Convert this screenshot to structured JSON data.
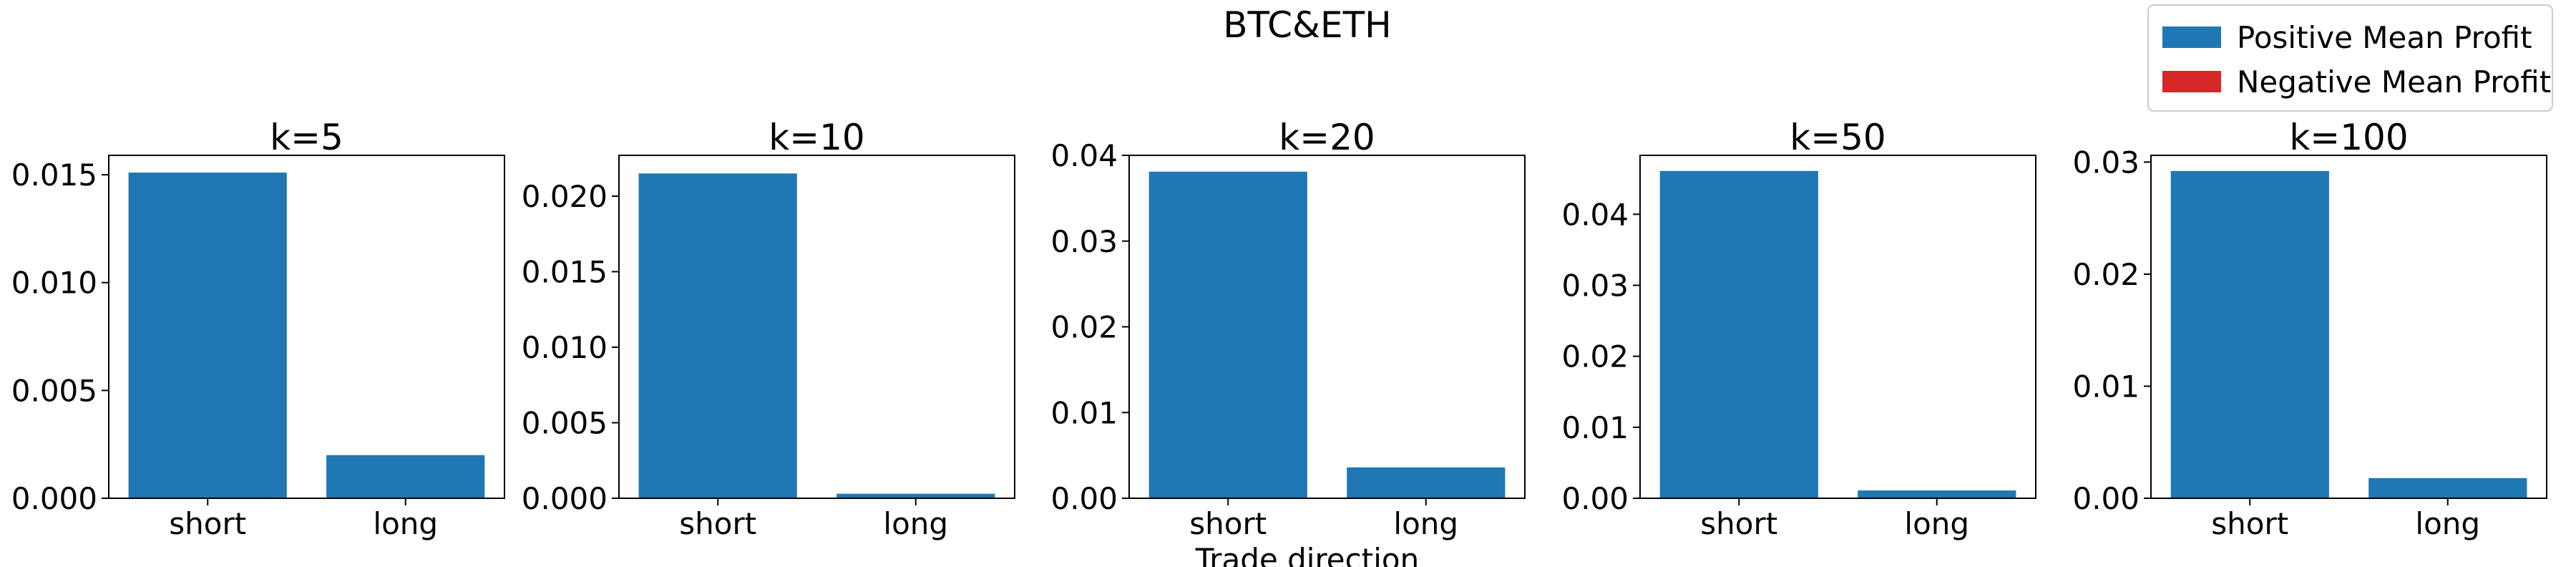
{
  "suptitle": "BTC&ETH",
  "xlabel": "Trade direction",
  "legend": {
    "placement": "top-right",
    "entries": [
      {
        "label": "Positive Mean Profit",
        "color": "#1f77b4"
      },
      {
        "label": "Negative Mean Profit",
        "color": "#d62728"
      }
    ]
  },
  "chart_data": [
    {
      "type": "bar",
      "title": "k=5",
      "categories": [
        "short",
        "long"
      ],
      "values": [
        0.0151,
        0.002
      ],
      "ylim": [
        0,
        0.0159
      ],
      "yticks": [
        0,
        0.005,
        0.01,
        0.015
      ],
      "ytick_labels": [
        "0.000",
        "0.005",
        "0.010",
        "0.015"
      ],
      "colors": [
        "#1f77b4",
        "#1f77b4"
      ]
    },
    {
      "type": "bar",
      "title": "k=10",
      "categories": [
        "short",
        "long"
      ],
      "values": [
        0.0215,
        0.0003
      ],
      "ylim": [
        0,
        0.0227
      ],
      "yticks": [
        0,
        0.005,
        0.01,
        0.015,
        0.02
      ],
      "ytick_labels": [
        "0.000",
        "0.005",
        "0.010",
        "0.015",
        "0.020"
      ],
      "colors": [
        "#1f77b4",
        "#1f77b4"
      ]
    },
    {
      "type": "bar",
      "title": "k=20",
      "categories": [
        "short",
        "long"
      ],
      "values": [
        0.0381,
        0.0036
      ],
      "ylim": [
        0,
        0.04
      ],
      "yticks": [
        0,
        0.01,
        0.02,
        0.03,
        0.04
      ],
      "ytick_labels": [
        "0.00",
        "0.01",
        "0.02",
        "0.03",
        "0.04"
      ],
      "colors": [
        "#1f77b4",
        "#1f77b4"
      ]
    },
    {
      "type": "bar",
      "title": "k=50",
      "categories": [
        "short",
        "long"
      ],
      "values": [
        0.0461,
        0.0011
      ],
      "ylim": [
        0,
        0.0483
      ],
      "yticks": [
        0,
        0.01,
        0.02,
        0.03,
        0.04
      ],
      "ytick_labels": [
        "0.00",
        "0.01",
        "0.02",
        "0.03",
        "0.04"
      ],
      "colors": [
        "#1f77b4",
        "#1f77b4"
      ]
    },
    {
      "type": "bar",
      "title": "k=100",
      "categories": [
        "short",
        "long"
      ],
      "values": [
        0.0292,
        0.0018
      ],
      "ylim": [
        0,
        0.0306
      ],
      "yticks": [
        0,
        0.01,
        0.02,
        0.03
      ],
      "ytick_labels": [
        "0.00",
        "0.01",
        "0.02",
        "0.03"
      ],
      "colors": [
        "#1f77b4",
        "#1f77b4"
      ]
    }
  ]
}
